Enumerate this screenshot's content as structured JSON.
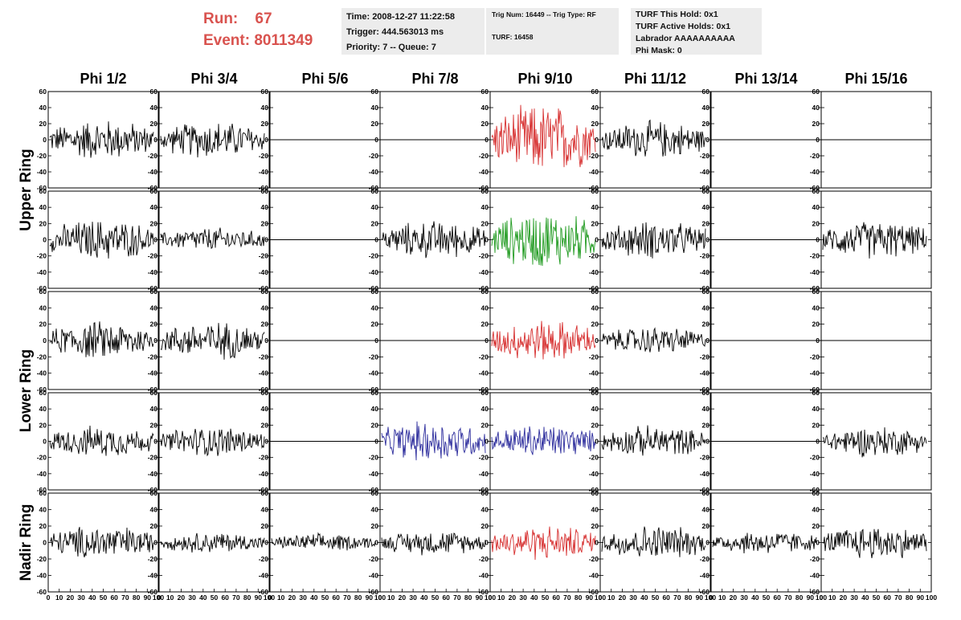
{
  "run_label": "Run:",
  "run_value": "67",
  "event_label": "Event:",
  "event_value": "8011349",
  "time_box": [
    "Time: 2008-12-27 11:22:58",
    "Trigger: 444.563013 ms",
    "Priority: 7 -- Queue: 7"
  ],
  "trig_box": [
    "Trig Num: 16449 -- Trig Type: RF",
    "TURF: 16458"
  ],
  "turf_box": [
    "TURF This Hold: 0x1",
    "TURF Active Holds: 0x1",
    "Labrador AAAAAAAAAA",
    "Phi Mask: 0"
  ],
  "columns": [
    "Phi 1/2",
    "Phi 3/4",
    "Phi 5/6",
    "Phi 7/8",
    "Phi 9/10",
    "Phi 11/12",
    "Phi 13/14",
    "Phi 15/16"
  ],
  "rings": [
    {
      "label": "Upper Ring",
      "rows": [
        0,
        1
      ]
    },
    {
      "label": "Lower Ring",
      "rows": [
        2,
        3
      ]
    },
    {
      "label": "Nadir Ring",
      "rows": [
        4
      ]
    }
  ],
  "colors": {
    "red": "#d62d2d",
    "green": "#1f9a1f",
    "blue": "#2b2b9c",
    "black": "#000000",
    "info_red": "#d9534f",
    "box_bg": "#ececec"
  },
  "chart_data": {
    "type": "line",
    "xlim": [
      0,
      100
    ],
    "ylim": [
      -60,
      60
    ],
    "y_ticks": [
      -60,
      -40,
      -20,
      0,
      20,
      40,
      60
    ],
    "x_ticks": [
      0,
      10,
      20,
      30,
      40,
      50,
      60,
      70,
      80,
      90,
      100
    ],
    "panels": [
      [
        "black-24",
        "black-22",
        "empty-0",
        "empty-0",
        "red-42",
        "black-22",
        "empty-0",
        "empty-0"
      ],
      [
        "black-24",
        "black-14",
        "empty-0",
        "black-22",
        "green-34",
        "black-22",
        "empty-0",
        "black-22"
      ],
      [
        "black-22",
        "black-22",
        "empty-0",
        "empty-0",
        "red-24",
        "black-16",
        "empty-0",
        "empty-0"
      ],
      [
        "black-18",
        "black-18",
        "empty-0",
        "blue-24",
        "blue-20",
        "black-18",
        "empty-0",
        "black-18"
      ],
      [
        "black-20",
        "black-12",
        "black-10",
        "black-14",
        "red-20",
        "black-20",
        "black-14",
        "black-20"
      ]
    ]
  }
}
